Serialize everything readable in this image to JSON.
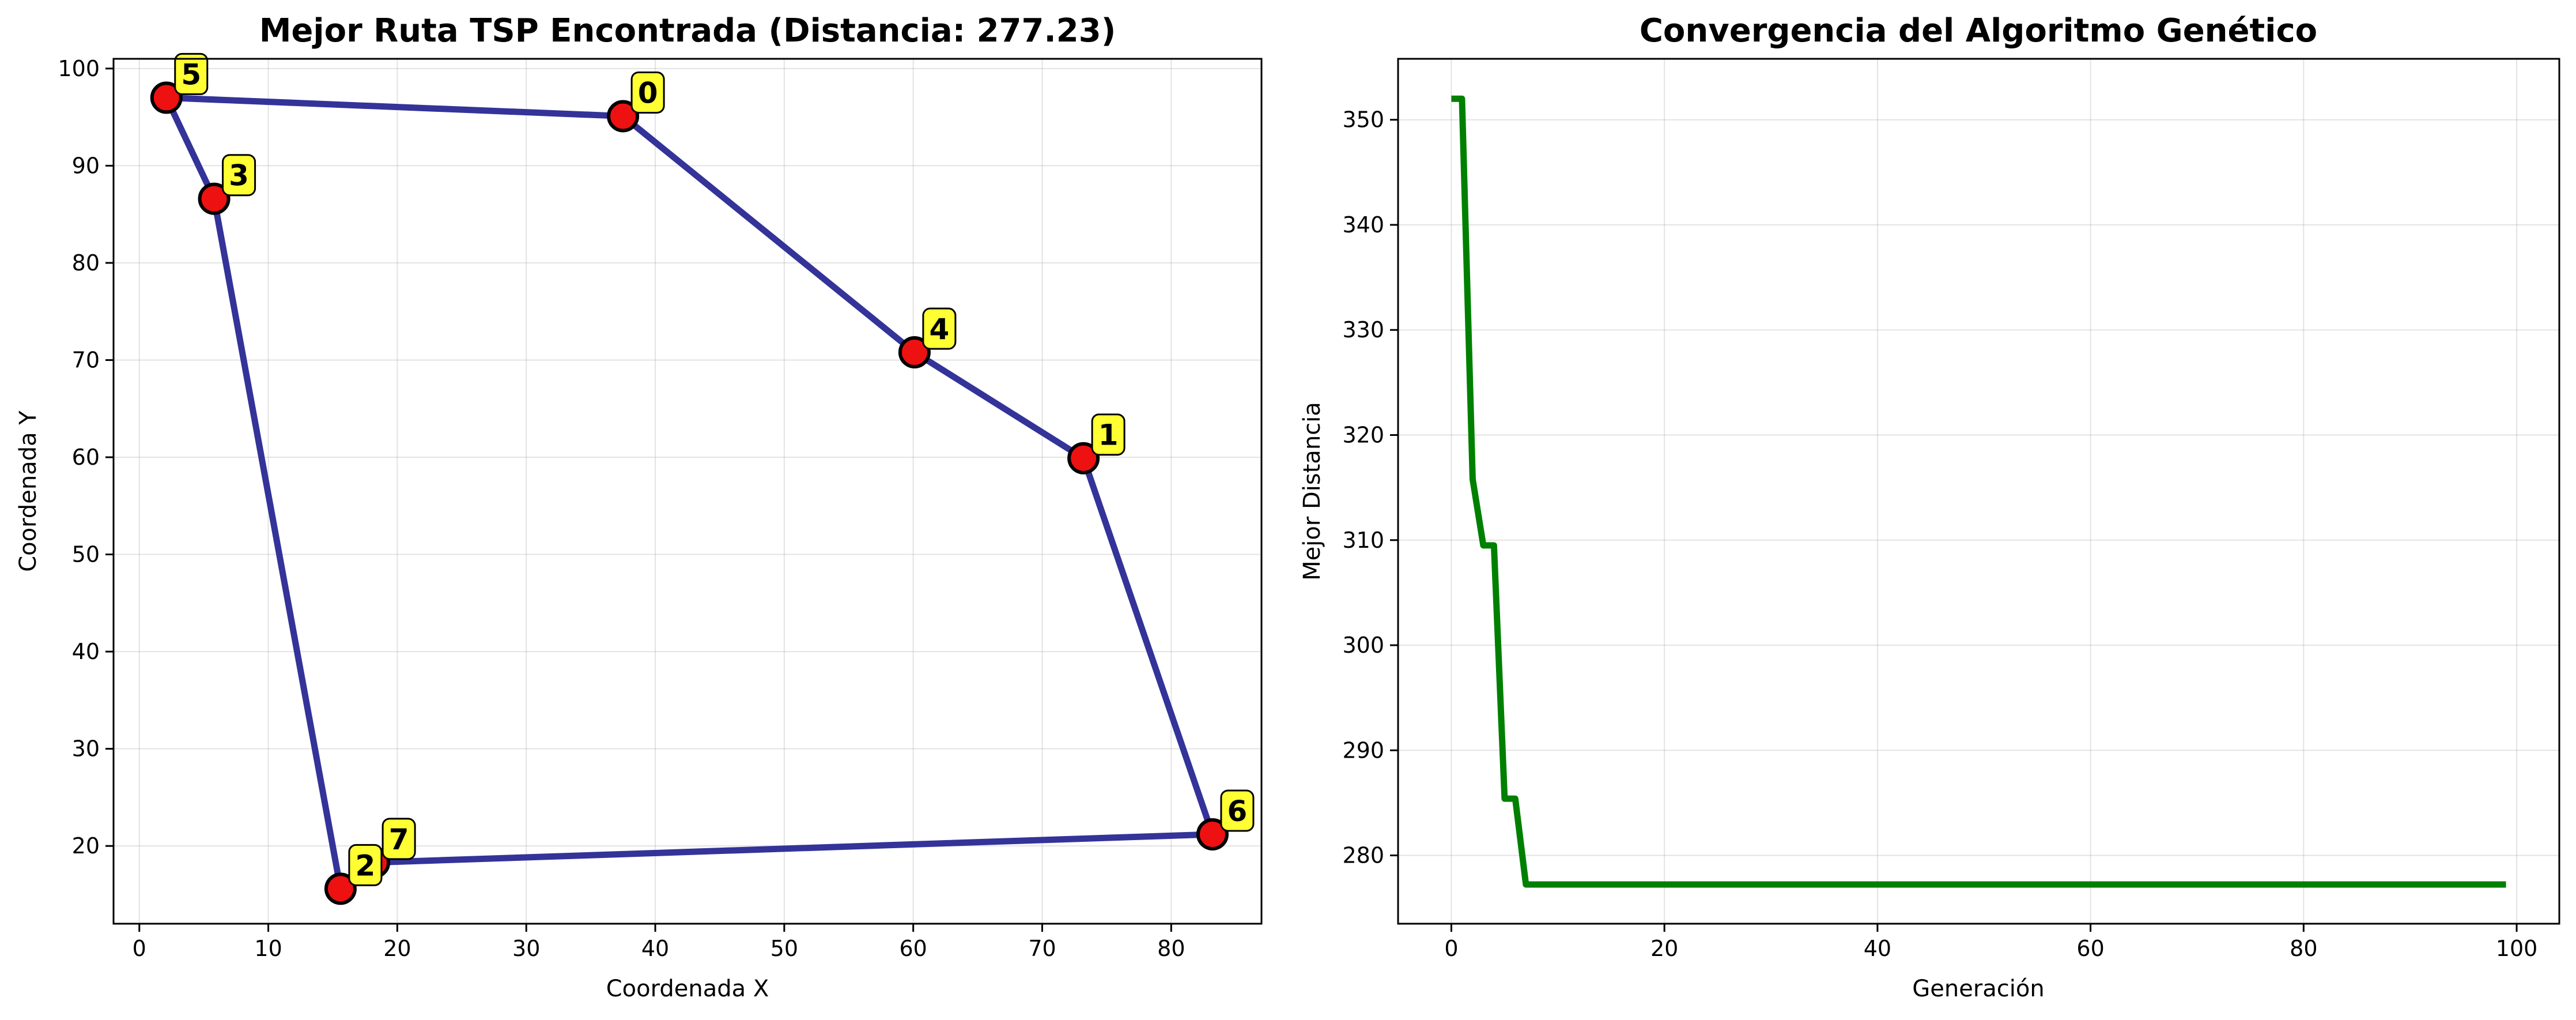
{
  "chart_data": [
    {
      "type": "scatter",
      "title": "Mejor Ruta TSP Encontrada (Distancia: 277.23)",
      "xlabel": "Coordenada X",
      "ylabel": "Coordenada Y",
      "xlim": [
        -2,
        87
      ],
      "ylim": [
        12,
        101
      ],
      "xticks": [
        0,
        10,
        20,
        30,
        40,
        50,
        60,
        70,
        80
      ],
      "yticks": [
        20,
        30,
        40,
        50,
        60,
        70,
        80,
        90,
        100
      ],
      "grid": true,
      "cities": [
        {
          "label": "0",
          "x": 37.5,
          "y": 95.1
        },
        {
          "label": "1",
          "x": 73.2,
          "y": 59.9
        },
        {
          "label": "2",
          "x": 15.6,
          "y": 15.6
        },
        {
          "label": "3",
          "x": 5.8,
          "y": 86.6
        },
        {
          "label": "4",
          "x": 60.1,
          "y": 70.8
        },
        {
          "label": "5",
          "x": 2.1,
          "y": 97.0
        },
        {
          "label": "6",
          "x": 83.2,
          "y": 21.2
        },
        {
          "label": "7",
          "x": 18.2,
          "y": 18.3
        }
      ],
      "route": [
        "0",
        "4",
        "1",
        "6",
        "7",
        "2",
        "3",
        "5",
        "0"
      ],
      "route_color": "#333399",
      "city_color": "#ee1111",
      "label_bg_color": "#ffff33"
    },
    {
      "type": "line",
      "title": "Convergencia del Algoritmo Genético",
      "xlabel": "Generación",
      "ylabel": "Mejor Distancia",
      "xlim": [
        -5,
        104
      ],
      "ylim": [
        273.5,
        355.8
      ],
      "xticks": [
        0,
        20,
        40,
        60,
        80,
        100
      ],
      "yticks": [
        280,
        290,
        300,
        310,
        320,
        330,
        340,
        350
      ],
      "grid": true,
      "line_color": "#008000",
      "x": [
        0,
        1,
        2,
        3,
        4,
        5,
        6,
        7,
        99
      ],
      "y": [
        352.0,
        352.0,
        315.8,
        309.5,
        309.5,
        285.4,
        285.4,
        277.23,
        277.23
      ]
    }
  ]
}
